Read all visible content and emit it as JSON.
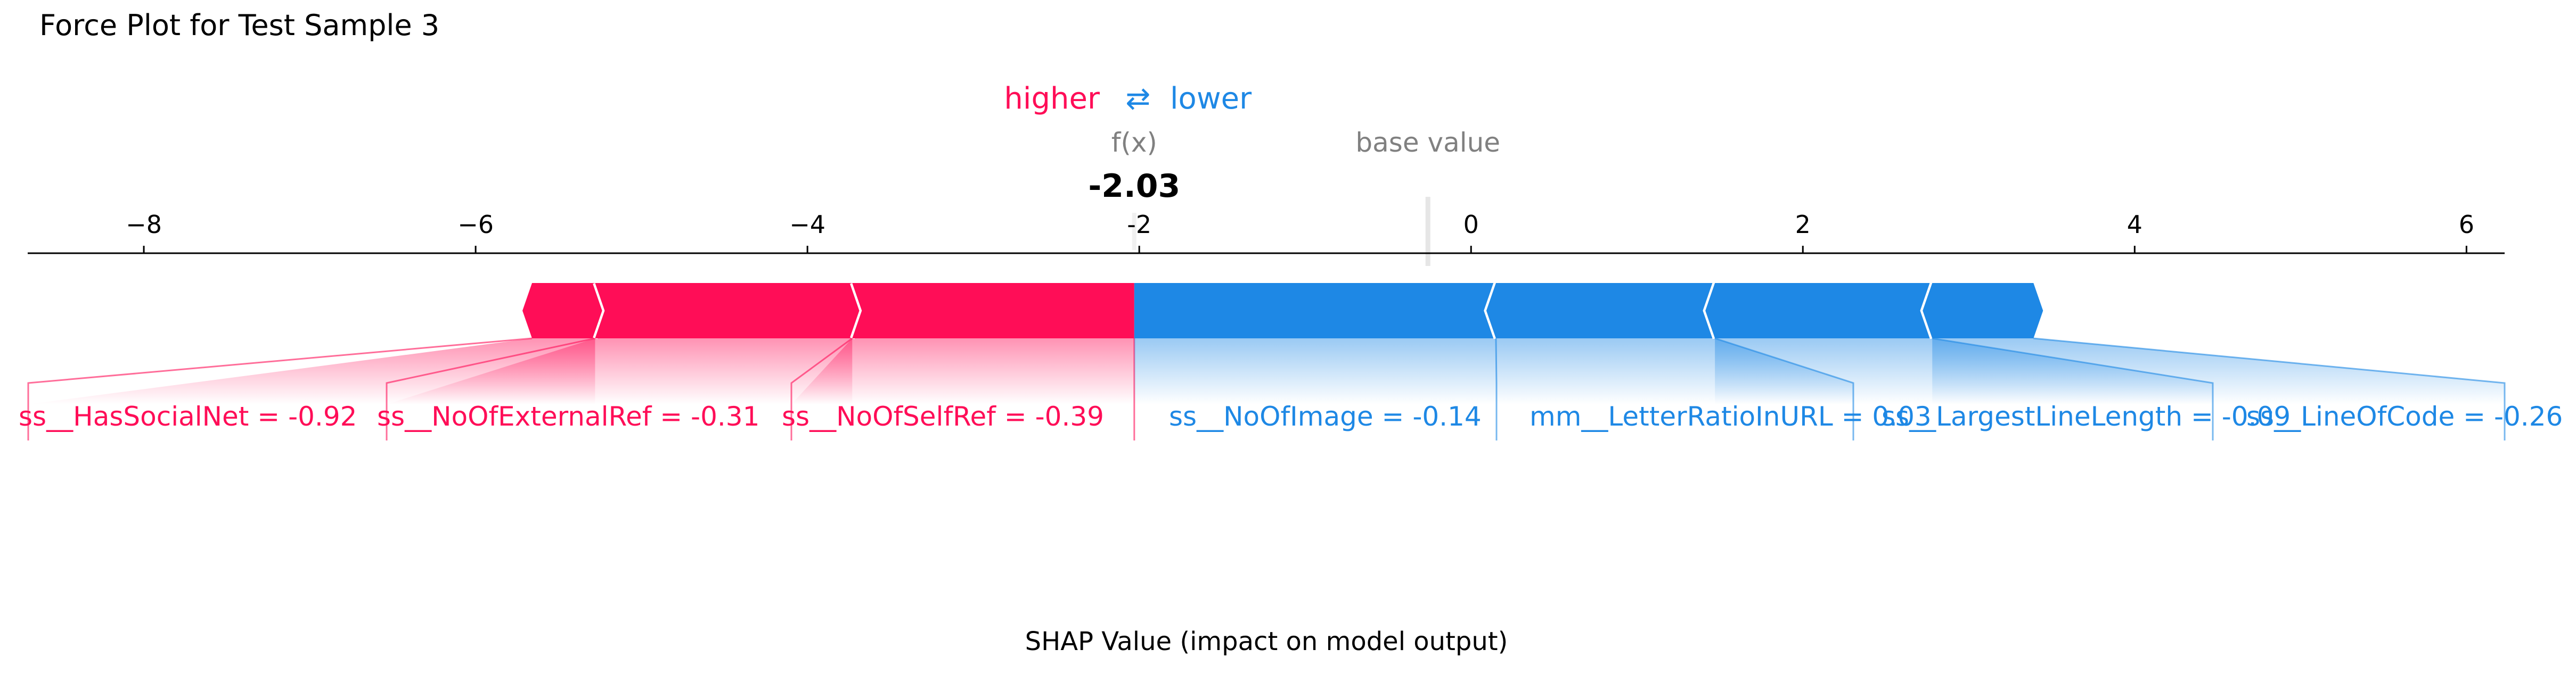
{
  "chart_data": {
    "type": "force",
    "title": "Force Plot for Test Sample 3",
    "xlabel": "SHAP Value (impact on model output)",
    "xlim": [
      -8.7,
      6.23
    ],
    "ticks": [
      -8,
      -6,
      -4,
      -2,
      0,
      2,
      4,
      6
    ],
    "tick_labels": [
      "−8",
      "−6",
      "−4",
      "-2",
      "0",
      "2",
      "4",
      "6"
    ],
    "legend": {
      "higher": "higher",
      "arrow": "⇄",
      "lower": "lower"
    },
    "fx_label": "f(x)",
    "fx_value": -2.03,
    "fx_text": "-2.03",
    "base_label": "base value",
    "base_value": -0.26,
    "colors": {
      "positive": "#ff0d57",
      "negative": "#1e88e5",
      "axis": "#000000",
      "muted": "#808080"
    },
    "positive_features": [
      {
        "label": "ss__HasSocialNet = -0.92",
        "start": -5.66,
        "end": -5.28
      },
      {
        "label": "ss__NoOfExternalRef = -0.31",
        "start": -5.28,
        "end": -3.73
      },
      {
        "label": "ss__NoOfSelfRef = -0.39",
        "start": -3.73,
        "end": -2.03
      }
    ],
    "negative_features": [
      {
        "label": "ss__NoOfImage = -0.14",
        "start": -2.03,
        "end": 0.15
      },
      {
        "label": "mm__LetterRatioInURL = 0.03",
        "start": 0.15,
        "end": 1.47
      },
      {
        "label": "ss__LargestLineLength = -0.09",
        "start": 1.47,
        "end": 2.78
      },
      {
        "label": "ss__LineOfCode = -0.26",
        "start": 2.78,
        "end": 3.39
      }
    ]
  }
}
